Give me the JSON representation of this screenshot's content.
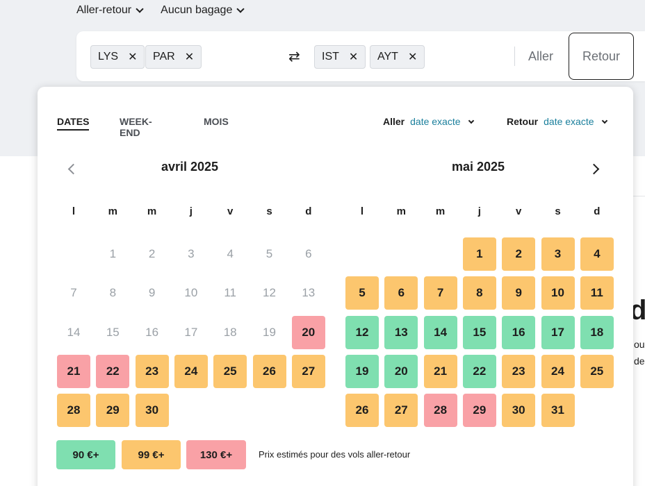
{
  "trip_options": {
    "trip_type": "Aller-retour",
    "baggage": "Aucun bagage"
  },
  "search": {
    "origins": [
      "LYS",
      "PAR"
    ],
    "destinations": [
      "IST",
      "AYT"
    ],
    "depart_placeholder": "Aller",
    "return_placeholder": "Retour"
  },
  "picker": {
    "tabs": [
      "DATES",
      "WEEK-END",
      "MOIS"
    ],
    "active_tab": "DATES",
    "depart_label": "Aller",
    "depart_value": "date exacte",
    "return_label": "Retour",
    "return_value": "date exacte"
  },
  "calendar": {
    "weekdays": [
      "l",
      "m",
      "m",
      "j",
      "v",
      "s",
      "d"
    ],
    "months": [
      {
        "title": "avril 2025",
        "first_weekday_index": 1,
        "days": [
          {
            "d": "1",
            "s": "disabled"
          },
          {
            "d": "2",
            "s": "disabled"
          },
          {
            "d": "3",
            "s": "disabled"
          },
          {
            "d": "4",
            "s": "disabled"
          },
          {
            "d": "5",
            "s": "disabled"
          },
          {
            "d": "6",
            "s": "disabled"
          },
          {
            "d": "7",
            "s": "disabled"
          },
          {
            "d": "8",
            "s": "disabled"
          },
          {
            "d": "9",
            "s": "disabled"
          },
          {
            "d": "10",
            "s": "disabled"
          },
          {
            "d": "11",
            "s": "disabled"
          },
          {
            "d": "12",
            "s": "disabled"
          },
          {
            "d": "13",
            "s": "disabled"
          },
          {
            "d": "14",
            "s": "disabled"
          },
          {
            "d": "15",
            "s": "disabled"
          },
          {
            "d": "16",
            "s": "disabled"
          },
          {
            "d": "17",
            "s": "disabled"
          },
          {
            "d": "18",
            "s": "disabled"
          },
          {
            "d": "19",
            "s": "disabled"
          },
          {
            "d": "20",
            "s": "red"
          },
          {
            "d": "21",
            "s": "red"
          },
          {
            "d": "22",
            "s": "red"
          },
          {
            "d": "23",
            "s": "orange"
          },
          {
            "d": "24",
            "s": "orange"
          },
          {
            "d": "25",
            "s": "orange"
          },
          {
            "d": "26",
            "s": "orange"
          },
          {
            "d": "27",
            "s": "orange"
          },
          {
            "d": "28",
            "s": "orange"
          },
          {
            "d": "29",
            "s": "orange"
          },
          {
            "d": "30",
            "s": "orange"
          }
        ]
      },
      {
        "title": "mai 2025",
        "first_weekday_index": 3,
        "days": [
          {
            "d": "1",
            "s": "orange"
          },
          {
            "d": "2",
            "s": "orange"
          },
          {
            "d": "3",
            "s": "orange"
          },
          {
            "d": "4",
            "s": "orange"
          },
          {
            "d": "5",
            "s": "orange"
          },
          {
            "d": "6",
            "s": "orange"
          },
          {
            "d": "7",
            "s": "orange"
          },
          {
            "d": "8",
            "s": "orange"
          },
          {
            "d": "9",
            "s": "orange"
          },
          {
            "d": "10",
            "s": "orange"
          },
          {
            "d": "11",
            "s": "orange"
          },
          {
            "d": "12",
            "s": "green"
          },
          {
            "d": "13",
            "s": "green"
          },
          {
            "d": "14",
            "s": "green"
          },
          {
            "d": "15",
            "s": "green"
          },
          {
            "d": "16",
            "s": "green"
          },
          {
            "d": "17",
            "s": "green"
          },
          {
            "d": "18",
            "s": "green"
          },
          {
            "d": "19",
            "s": "green"
          },
          {
            "d": "20",
            "s": "green"
          },
          {
            "d": "21",
            "s": "orange"
          },
          {
            "d": "22",
            "s": "green"
          },
          {
            "d": "23",
            "s": "orange"
          },
          {
            "d": "24",
            "s": "orange"
          },
          {
            "d": "25",
            "s": "orange"
          },
          {
            "d": "26",
            "s": "orange"
          },
          {
            "d": "27",
            "s": "orange"
          },
          {
            "d": "28",
            "s": "red"
          },
          {
            "d": "29",
            "s": "red"
          },
          {
            "d": "30",
            "s": "orange"
          },
          {
            "d": "31",
            "s": "orange"
          }
        ]
      }
    ]
  },
  "legend": {
    "green": "90 €+",
    "orange": "99 €+",
    "red": "130 €+",
    "note": "Prix estimés pour des vols aller-retour"
  },
  "background_page": {
    "heading_fragment": "d",
    "line1_fragment": "ous",
    "line2_fragment": "de"
  },
  "colors": {
    "green": "#7fdfb0",
    "orange": "#fcc66e",
    "red": "#f9a1a6",
    "link": "#1a7f9c"
  }
}
